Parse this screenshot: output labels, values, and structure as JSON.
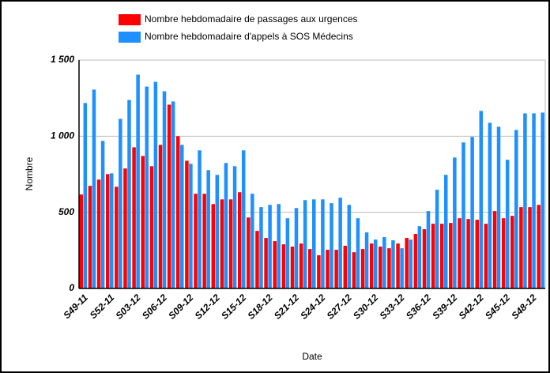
{
  "chart_data": {
    "type": "bar",
    "categories": [
      "S49-11",
      null,
      null,
      "S52-11",
      null,
      null,
      "S03-12",
      null,
      null,
      "S06-12",
      null,
      null,
      "S09-12",
      null,
      null,
      "S12-12",
      null,
      null,
      "S15-12",
      null,
      null,
      "S18-12",
      null,
      null,
      "S21-12",
      null,
      null,
      "S24-12",
      null,
      null,
      "S27-12",
      null,
      null,
      "S30-12",
      null,
      null,
      "S33-12",
      null,
      null,
      "S36-12",
      null,
      null,
      "S39-12",
      null,
      null,
      "S42-12",
      null,
      null,
      "S45-12",
      null,
      null,
      "S48-12",
      null
    ],
    "series": [
      {
        "name": "Nombre hebdomadaire de passages aux urgences",
        "color": "#ff0000",
        "values": [
          617,
          674,
          715,
          751,
          668,
          788,
          927,
          870,
          803,
          943,
          1207,
          1000,
          839,
          622,
          622,
          554,
          585,
          585,
          632,
          466,
          378,
          332,
          311,
          290,
          275,
          295,
          259,
          218,
          254,
          254,
          280,
          238,
          259,
          295,
          275,
          264,
          295,
          332,
          358,
          389,
          425,
          425,
          430,
          461,
          456,
          451,
          425,
          508,
          461,
          477,
          534,
          534,
          549
        ]
      },
      {
        "name": "Nombre hebdomadaire d'appels à SOS Médecins",
        "color": "#1e90ff",
        "values": [
          1218,
          1306,
          969,
          756,
          1114,
          1238,
          1404,
          1326,
          1357,
          1295,
          1228,
          943,
          819,
          907,
          777,
          746,
          824,
          803,
          907,
          622,
          534,
          549,
          554,
          461,
          528,
          580,
          585,
          585,
          560,
          596,
          549,
          461,
          368,
          321,
          337,
          316,
          264,
          321,
          409,
          508,
          648,
          746,
          860,
          959,
          995,
          1166,
          1088,
          1062,
          845,
          1041,
          1150,
          1150,
          1155
        ]
      }
    ],
    "ylim": [
      0,
      1500
    ],
    "yticks": [
      0,
      500,
      {
        "value": 1000,
        "label": "1 000"
      },
      {
        "value": 1500,
        "label": "1 500"
      }
    ],
    "x_label": "Date",
    "y_label": "Nombre",
    "grid": true
  }
}
